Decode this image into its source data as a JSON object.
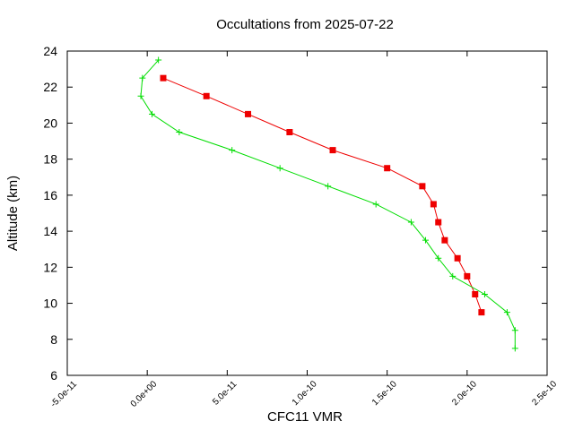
{
  "chart_data": {
    "type": "line",
    "title": "Occultations from 2025-07-22",
    "xlabel": "CFC11 VMR",
    "ylabel": "Altitude (km)",
    "xlim": [
      -5e-11,
      2.5e-10
    ],
    "ylim": [
      6,
      24
    ],
    "x_ticks": [
      -5e-11,
      0,
      5e-11,
      1e-10,
      1.5e-10,
      2e-10,
      2.5e-10
    ],
    "x_tick_labels": [
      "-5.0e-11",
      "0.0e+00",
      "5.0e-11",
      "1.0e-10",
      "1.5e-10",
      "2.0e-10",
      "2.5e-10"
    ],
    "y_ticks": [
      6,
      8,
      10,
      12,
      14,
      16,
      18,
      20,
      22,
      24
    ],
    "y_tick_labels": [
      "6",
      "8",
      "10",
      "12",
      "14",
      "16",
      "18",
      "20",
      "22",
      "24"
    ],
    "grid": false,
    "legend": "none",
    "series": [
      {
        "color": "#ee0000",
        "marker": "square",
        "points": [
          [
            1e-11,
            22.5
          ],
          [
            3.7e-11,
            21.5
          ],
          [
            6.3e-11,
            20.5
          ],
          [
            8.9e-11,
            19.5
          ],
          [
            1.16e-10,
            18.5
          ],
          [
            1.5e-10,
            17.5
          ],
          [
            1.72e-10,
            16.5
          ],
          [
            1.79e-10,
            15.5
          ],
          [
            1.82e-10,
            14.5
          ],
          [
            1.86e-10,
            13.5
          ],
          [
            1.94e-10,
            12.5
          ],
          [
            2e-10,
            11.5
          ],
          [
            2.05e-10,
            10.5
          ],
          [
            2.09e-10,
            9.5
          ]
        ]
      },
      {
        "color": "#00dd00",
        "marker": "plus",
        "points": [
          [
            7e-12,
            23.5
          ],
          [
            -3e-12,
            22.5
          ],
          [
            -4e-12,
            21.5
          ],
          [
            3e-12,
            20.5
          ],
          [
            2e-11,
            19.5
          ],
          [
            5.3e-11,
            18.5
          ],
          [
            8.3e-11,
            17.5
          ],
          [
            1.13e-10,
            16.5
          ],
          [
            1.43e-10,
            15.5
          ],
          [
            1.65e-10,
            14.5
          ],
          [
            1.74e-10,
            13.5
          ],
          [
            1.82e-10,
            12.5
          ],
          [
            1.91e-10,
            11.5
          ],
          [
            2.11e-10,
            10.5
          ],
          [
            2.25e-10,
            9.5
          ],
          [
            2.3e-10,
            8.5
          ],
          [
            2.3e-10,
            7.5
          ]
        ]
      }
    ]
  }
}
